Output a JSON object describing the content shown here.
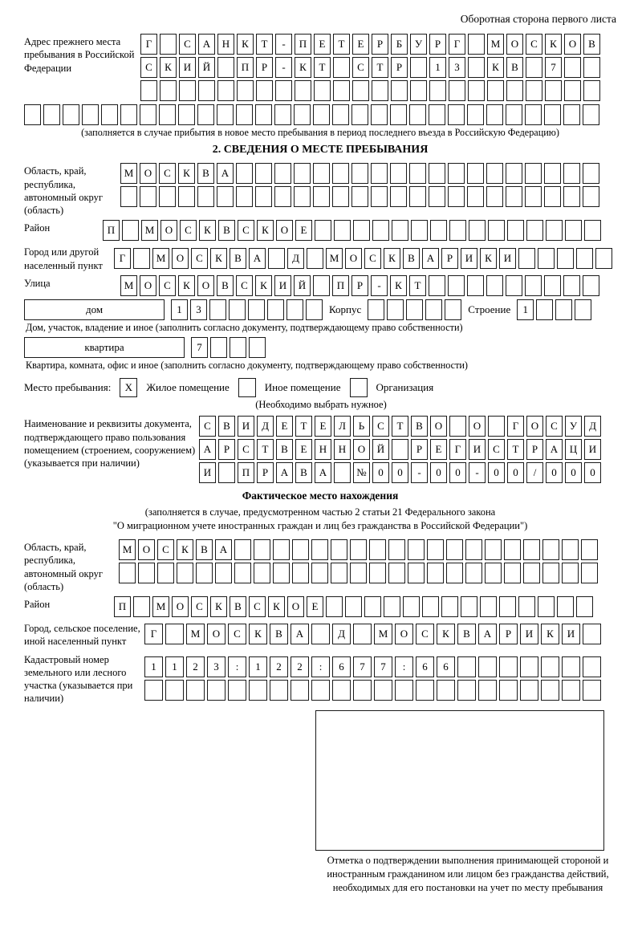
{
  "header": {
    "corner_note": "Оборотная сторона первого листа"
  },
  "prev_address": {
    "label": "Адрес прежнего места пребывания в Российской Федерации",
    "rows": [
      {
        "chars": "Г САНКТ-ПЕТЕРБУРГ МОСКОВ",
        "len": 24
      },
      {
        "chars": "СКИЙ ПР-КТ СТР 13 КВ 7",
        "len": 24
      },
      {
        "chars": "",
        "len": 24
      },
      {
        "chars": "",
        "len": 30
      }
    ],
    "caption": "(заполняется в случае прибытия в новое место пребывания в период последнего въезда в Российскую Федерацию)"
  },
  "section2": {
    "title": "2. СВЕДЕНИЯ О МЕСТЕ ПРЕБЫВАНИЯ",
    "oblast": {
      "label": "Область, край, республика, автономный округ (область)",
      "rows": [
        {
          "chars": "МОСКВА",
          "len": 25
        },
        {
          "chars": "",
          "len": 25
        }
      ]
    },
    "raion": {
      "label": "Район",
      "row": {
        "chars": "П МОСКВСКОЕ",
        "len": 26
      }
    },
    "gorod": {
      "label": "Город или другой населенный пункт",
      "row": {
        "chars": "Г МОСКВА Д МОСКВАРИКИ",
        "len": 26
      }
    },
    "ulitsa": {
      "label": "Улица",
      "row": {
        "chars": "МОСКОВСКИЙ ПР-КТ",
        "len": 25
      }
    },
    "dom": {
      "box_label": "дом",
      "number": {
        "chars": "13",
        "len": 8
      },
      "korpus_label": "Корпус",
      "korpus": {
        "chars": "",
        "len": 5
      },
      "stroenie_label": "Строение",
      "stroenie": {
        "chars": "1",
        "len": 4
      },
      "caption": "Дом, участок, владение и иное (заполнить согласно документу, подтверждающему право собственности)"
    },
    "kvartira": {
      "box_label": "квартира",
      "number": {
        "chars": "7",
        "len": 4
      },
      "caption": "Квартира, комната, офис и иное (заполнить согласно документу, подтверждающему право собственности)"
    },
    "stay_type": {
      "label": "Место пребывания:",
      "options": [
        {
          "label": "Жилое помещение",
          "mark": "X"
        },
        {
          "label": "Иное помещение",
          "mark": ""
        },
        {
          "label": "Организация",
          "mark": ""
        }
      ],
      "note": "(Необходимо выбрать нужное)"
    },
    "document": {
      "label": "Наименование и реквизиты документа, подтверждающего право пользования помещением (строением, сооружением) (указывается при наличии)",
      "rows": [
        {
          "chars": "СВИДЕТЕЛЬСТВО О ГОСУД",
          "len": 21
        },
        {
          "chars": "АРСТВЕННОЙ РЕГИСТРАЦИ",
          "len": 21
        },
        {
          "chars": "И ПРАВА №00-00-00/000",
          "len": 21
        }
      ]
    }
  },
  "factual": {
    "title": "Фактическое место нахождения",
    "note1": "(заполняется в случае, предусмотренном частью 2 статьи 21 Федерального закона",
    "note2": "\"О миграционном учете иностранных граждан и лиц без гражданства в Российской Федерации\")",
    "oblast": {
      "label": "Область, край, республика, автономный округ (область)",
      "rows": [
        {
          "chars": "МОСКВА",
          "len": 25
        },
        {
          "chars": "",
          "len": 25
        }
      ]
    },
    "raion": {
      "label": "Район",
      "row": {
        "chars": "П МОСКВСКОЕ",
        "len": 25
      }
    },
    "gorod": {
      "label": "Город, сельское поселение, иной населенный пункт",
      "row": {
        "chars": "Г МОСКВА Д МОСКВАРИКИ",
        "len": 22
      }
    },
    "kadastr": {
      "label": "Кадастровый номер земельного или лесного участка (указывается при наличии)",
      "rows": [
        {
          "chars": "1123:122:677:66",
          "len": 22
        },
        {
          "chars": "",
          "len": 22
        }
      ]
    }
  },
  "stamp": {
    "caption": "Отметка о подтверждении выполнения принимающей стороной и иностранным гражданином или лицом без гражданства действий, необходимых для его постановки на учет по месту пребывания"
  }
}
